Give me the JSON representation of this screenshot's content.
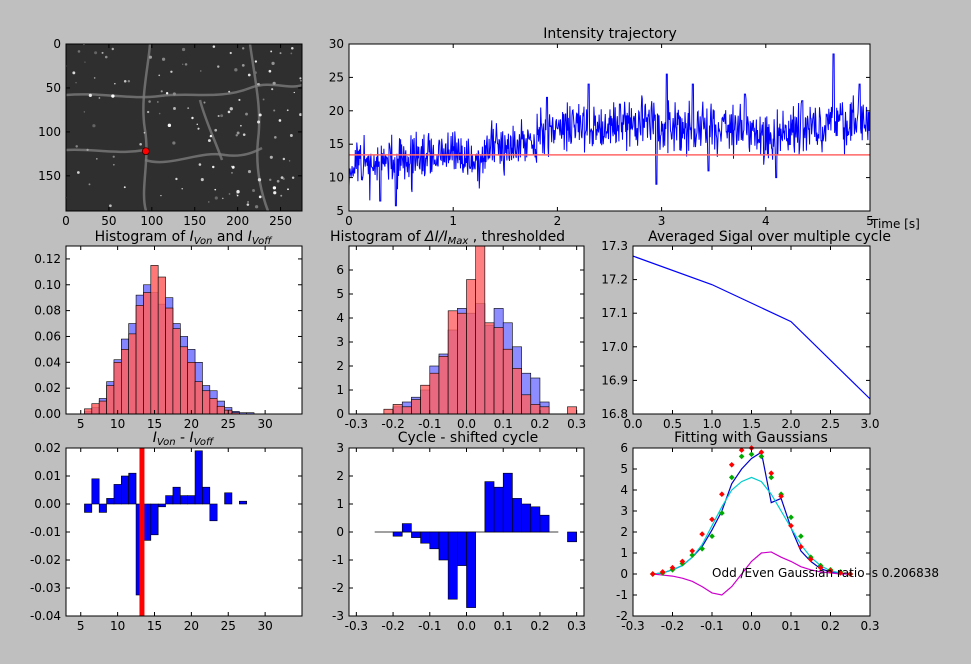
{
  "figure": {
    "background": "#bfbfbf"
  },
  "chart_data": [
    {
      "id": "image",
      "type": "heatmap",
      "title": "",
      "xlim": [
        0,
        275
      ],
      "ylim": [
        190,
        0
      ],
      "xticks": [
        0,
        50,
        100,
        150,
        200,
        250
      ],
      "yticks": [
        0,
        50,
        100,
        150
      ],
      "marker": {
        "x": 93,
        "y": 122,
        "color": "#ff0000"
      }
    },
    {
      "id": "trajectory",
      "type": "line",
      "title": "Intensity trajectory",
      "xlabel": "Time [s]",
      "xlim": [
        0,
        5
      ],
      "ylim": [
        5,
        30
      ],
      "xticks": [
        0,
        1,
        2,
        3,
        4,
        5
      ],
      "yticks": [
        5,
        10,
        15,
        20,
        25,
        30
      ],
      "threshold": 13.4,
      "threshold_color": "#ff6666",
      "series_color": "#0000ff",
      "segments": [
        [
          0,
          11.5
        ],
        [
          0.5,
          12.5
        ],
        [
          1.0,
          13.5
        ],
        [
          1.25,
          12.5
        ],
        [
          1.4,
          14.5
        ],
        [
          1.6,
          15.5
        ],
        [
          1.8,
          16
        ],
        [
          2.1,
          18
        ],
        [
          2.5,
          17.5
        ],
        [
          2.9,
          18.5
        ],
        [
          3.2,
          17
        ],
        [
          3.6,
          18
        ],
        [
          4.0,
          16
        ],
        [
          4.4,
          17.5
        ],
        [
          4.8,
          18.5
        ],
        [
          5,
          18
        ]
      ],
      "noise": 2.3,
      "spikes": [
        [
          0.3,
          6.5
        ],
        [
          0.45,
          5.8
        ],
        [
          1.9,
          22
        ],
        [
          2.3,
          24
        ],
        [
          2.6,
          21
        ],
        [
          3.05,
          25.5
        ],
        [
          3.3,
          24
        ],
        [
          3.8,
          22.5
        ],
        [
          4.35,
          21.5
        ],
        [
          4.65,
          28.5
        ],
        [
          4.9,
          24
        ],
        [
          2.95,
          9
        ],
        [
          3.45,
          11
        ],
        [
          4.1,
          10
        ]
      ]
    },
    {
      "id": "hist_von_voff",
      "type": "bar",
      "title_prefix": "Histogram of ",
      "title_a": "I",
      "title_a_sub": "Von",
      "title_mid": " and ",
      "title_b": "I",
      "title_b_sub": "Voff",
      "xlim": [
        3,
        35
      ],
      "ylim": [
        0,
        0.13
      ],
      "xticks": [
        5,
        10,
        15,
        20,
        25,
        30
      ],
      "yticks": [
        0.0,
        0.02,
        0.04,
        0.06,
        0.08,
        0.1,
        0.12
      ],
      "bins": [
        6,
        7,
        8,
        9,
        10,
        11,
        12,
        13,
        14,
        15,
        16,
        17,
        18,
        19,
        20,
        21,
        22,
        23,
        24,
        25,
        26,
        27,
        28,
        29
      ],
      "series": [
        {
          "name": "",
          "color": "#7070ff",
          "values": [
            0.002,
            0.005,
            0.012,
            0.025,
            0.042,
            0.058,
            0.07,
            0.092,
            0.1,
            0.094,
            0.085,
            0.09,
            0.07,
            0.06,
            0.05,
            0.04,
            0.022,
            0.018,
            0.01,
            0.005,
            0.002,
            0.001,
            0.001,
            0.0
          ]
        },
        {
          "name": "",
          "color": "#ff6060",
          "values": [
            0.004,
            0.008,
            0.01,
            0.022,
            0.04,
            0.05,
            0.062,
            0.084,
            0.094,
            0.115,
            0.106,
            0.082,
            0.066,
            0.052,
            0.04,
            0.025,
            0.018,
            0.012,
            0.006,
            0.003,
            0.001,
            0.0,
            0.0,
            0.0
          ]
        }
      ]
    },
    {
      "id": "hist_delta",
      "type": "bar",
      "title_prefix": "Histogram of ",
      "title_expr": "ΔI/I",
      "title_sub": "Max",
      "title_suffix": " , thresholded",
      "xlim": [
        -0.32,
        0.32
      ],
      "ylim": [
        0,
        7
      ],
      "xticks": [
        -0.3,
        -0.2,
        -0.1,
        0.0,
        0.1,
        0.2,
        0.3
      ],
      "yticks": [
        0,
        1,
        2,
        3,
        4,
        5,
        6
      ],
      "bins_start": -0.225,
      "bin_width": 0.025,
      "series": [
        {
          "name": "",
          "color": "#7070ff",
          "values": [
            0,
            0.3,
            0.5,
            0.7,
            1.0,
            2.0,
            2.5,
            3.5,
            4.4,
            4.2,
            4.6,
            3.7,
            4.4,
            3.8,
            2.8,
            1.7,
            1.5,
            0.5,
            0,
            0,
            0
          ]
        },
        {
          "name": "",
          "color": "#ff6060",
          "values": [
            0.2,
            0.4,
            0.3,
            0.6,
            1.2,
            1.7,
            2.4,
            4.3,
            4.2,
            5.6,
            7.0,
            3.8,
            3.6,
            2.7,
            1.9,
            0.8,
            0.4,
            0.3,
            0,
            0,
            0.3
          ]
        }
      ]
    },
    {
      "id": "averaged",
      "type": "line",
      "title": "Averaged Sigal over multiple cycle",
      "xlim": [
        0,
        3
      ],
      "ylim": [
        16.8,
        17.3
      ],
      "xticks": [
        0.0,
        0.5,
        1.0,
        1.5,
        2.0,
        2.5,
        3.0
      ],
      "yticks": [
        16.8,
        16.9,
        17.0,
        17.1,
        17.2,
        17.3
      ],
      "x": [
        0,
        1,
        2,
        3
      ],
      "y": [
        17.27,
        17.185,
        17.075,
        16.845
      ],
      "color": "#0000ff"
    },
    {
      "id": "von_minus_voff",
      "type": "bar",
      "title_a": "I",
      "title_a_sub": "Von",
      "title_mid": " - ",
      "title_b": "I",
      "title_b_sub": "Voff",
      "xlim": [
        3,
        35
      ],
      "ylim": [
        -0.04,
        0.02
      ],
      "xticks": [
        5,
        10,
        15,
        20,
        25,
        30
      ],
      "yticks": [
        -0.04,
        -0.03,
        -0.02,
        -0.01,
        0.0,
        0.01,
        0.02
      ],
      "bins": [
        6,
        7,
        8,
        9,
        10,
        11,
        12,
        13,
        14,
        15,
        16,
        17,
        18,
        19,
        20,
        21,
        22,
        23,
        24,
        25,
        26,
        27,
        28,
        29
      ],
      "values": [
        -0.003,
        0.009,
        -0.003,
        0.002,
        0.007,
        0.01,
        0.011,
        -0.0325,
        -0.013,
        -0.011,
        -0.001,
        0.003,
        0.006,
        0.003,
        0.003,
        0.019,
        0.006,
        -0.006,
        0.0,
        0.004,
        0.0,
        0.001,
        0.0,
        0.0
      ],
      "color": "#0000ff",
      "vline": 13.3,
      "vline_color": "#ff0000"
    },
    {
      "id": "cycle_shift",
      "type": "bar",
      "title": "Cycle - shifted cycle",
      "xlim": [
        -0.32,
        0.32
      ],
      "ylim": [
        -3,
        3
      ],
      "xticks": [
        -0.3,
        -0.2,
        -0.1,
        0.0,
        0.1,
        0.2,
        0.3
      ],
      "yticks": [
        -3,
        -2,
        -1,
        0,
        1,
        2,
        3
      ],
      "bins_start": -0.25,
      "bin_width": 0.025,
      "values": [
        0,
        0,
        -0.15,
        0.3,
        -0.2,
        -0.4,
        -0.6,
        -1.0,
        -2.4,
        -1.2,
        -2.7,
        0,
        1.8,
        1.6,
        2.1,
        1.2,
        1.0,
        0.9,
        0.6,
        0,
        0,
        -0.35
      ],
      "color": "#0000ff"
    },
    {
      "id": "fit_gaussians",
      "type": "line",
      "title": "Fitting with Gaussians",
      "annotation": "Odd /Even Gaussian ratio is 0.206838",
      "xlim": [
        -0.3,
        0.3
      ],
      "ylim": [
        -2,
        6
      ],
      "xticks": [
        -0.3,
        -0.2,
        -0.1,
        0.0,
        0.1,
        0.2,
        0.3
      ],
      "yticks": [
        -2,
        -1,
        0,
        1,
        2,
        3,
        4,
        5,
        6
      ],
      "x": [
        -0.25,
        -0.225,
        -0.2,
        -0.175,
        -0.15,
        -0.125,
        -0.1,
        -0.075,
        -0.05,
        -0.025,
        0.0,
        0.025,
        0.05,
        0.075,
        0.1,
        0.125,
        0.15,
        0.175,
        0.2,
        0.225,
        0.25
      ],
      "series": [
        {
          "name": "",
          "kind": "line",
          "color": "#0000cc",
          "values": [
            0,
            0.05,
            0.2,
            0.4,
            0.8,
            1.3,
            2.1,
            3.0,
            4.3,
            5.0,
            5.5,
            5.8,
            3.4,
            3.6,
            2.2,
            1.1,
            0.6,
            0.25,
            0.1,
            0.05,
            0
          ]
        },
        {
          "name": "",
          "kind": "line",
          "color": "#00cccc",
          "values": [
            0,
            0.05,
            0.2,
            0.4,
            0.8,
            1.4,
            2.3,
            3.2,
            4.0,
            4.4,
            4.6,
            4.4,
            3.8,
            3.0,
            2.2,
            1.4,
            0.8,
            0.4,
            0.15,
            0.05,
            0
          ]
        },
        {
          "name": "",
          "kind": "line",
          "color": "#cc00cc",
          "values": [
            0,
            -0.05,
            -0.1,
            -0.2,
            -0.35,
            -0.6,
            -0.9,
            -1.0,
            -0.6,
            0.0,
            0.6,
            1.0,
            1.05,
            0.8,
            0.6,
            0.35,
            0.2,
            0.1,
            0.05,
            0,
            0
          ]
        },
        {
          "name": "",
          "kind": "dots",
          "color": "#00aa00",
          "values": [
            0,
            0.05,
            0.2,
            0.5,
            0.9,
            1.2,
            1.8,
            2.9,
            4.6,
            5.6,
            5.7,
            5.6,
            4.6,
            3.8,
            2.7,
            1.8,
            0.8,
            0.4,
            0.2,
            0.1,
            0
          ]
        },
        {
          "name": "",
          "kind": "dots",
          "color": "#ff0000",
          "values": [
            0,
            0.1,
            0.3,
            0.6,
            1.1,
            1.9,
            2.6,
            3.8,
            5.2,
            5.9,
            6.0,
            5.8,
            4.8,
            3.7,
            2.3,
            1.3,
            0.7,
            0.3,
            0.15,
            0.05,
            0
          ]
        }
      ]
    }
  ]
}
